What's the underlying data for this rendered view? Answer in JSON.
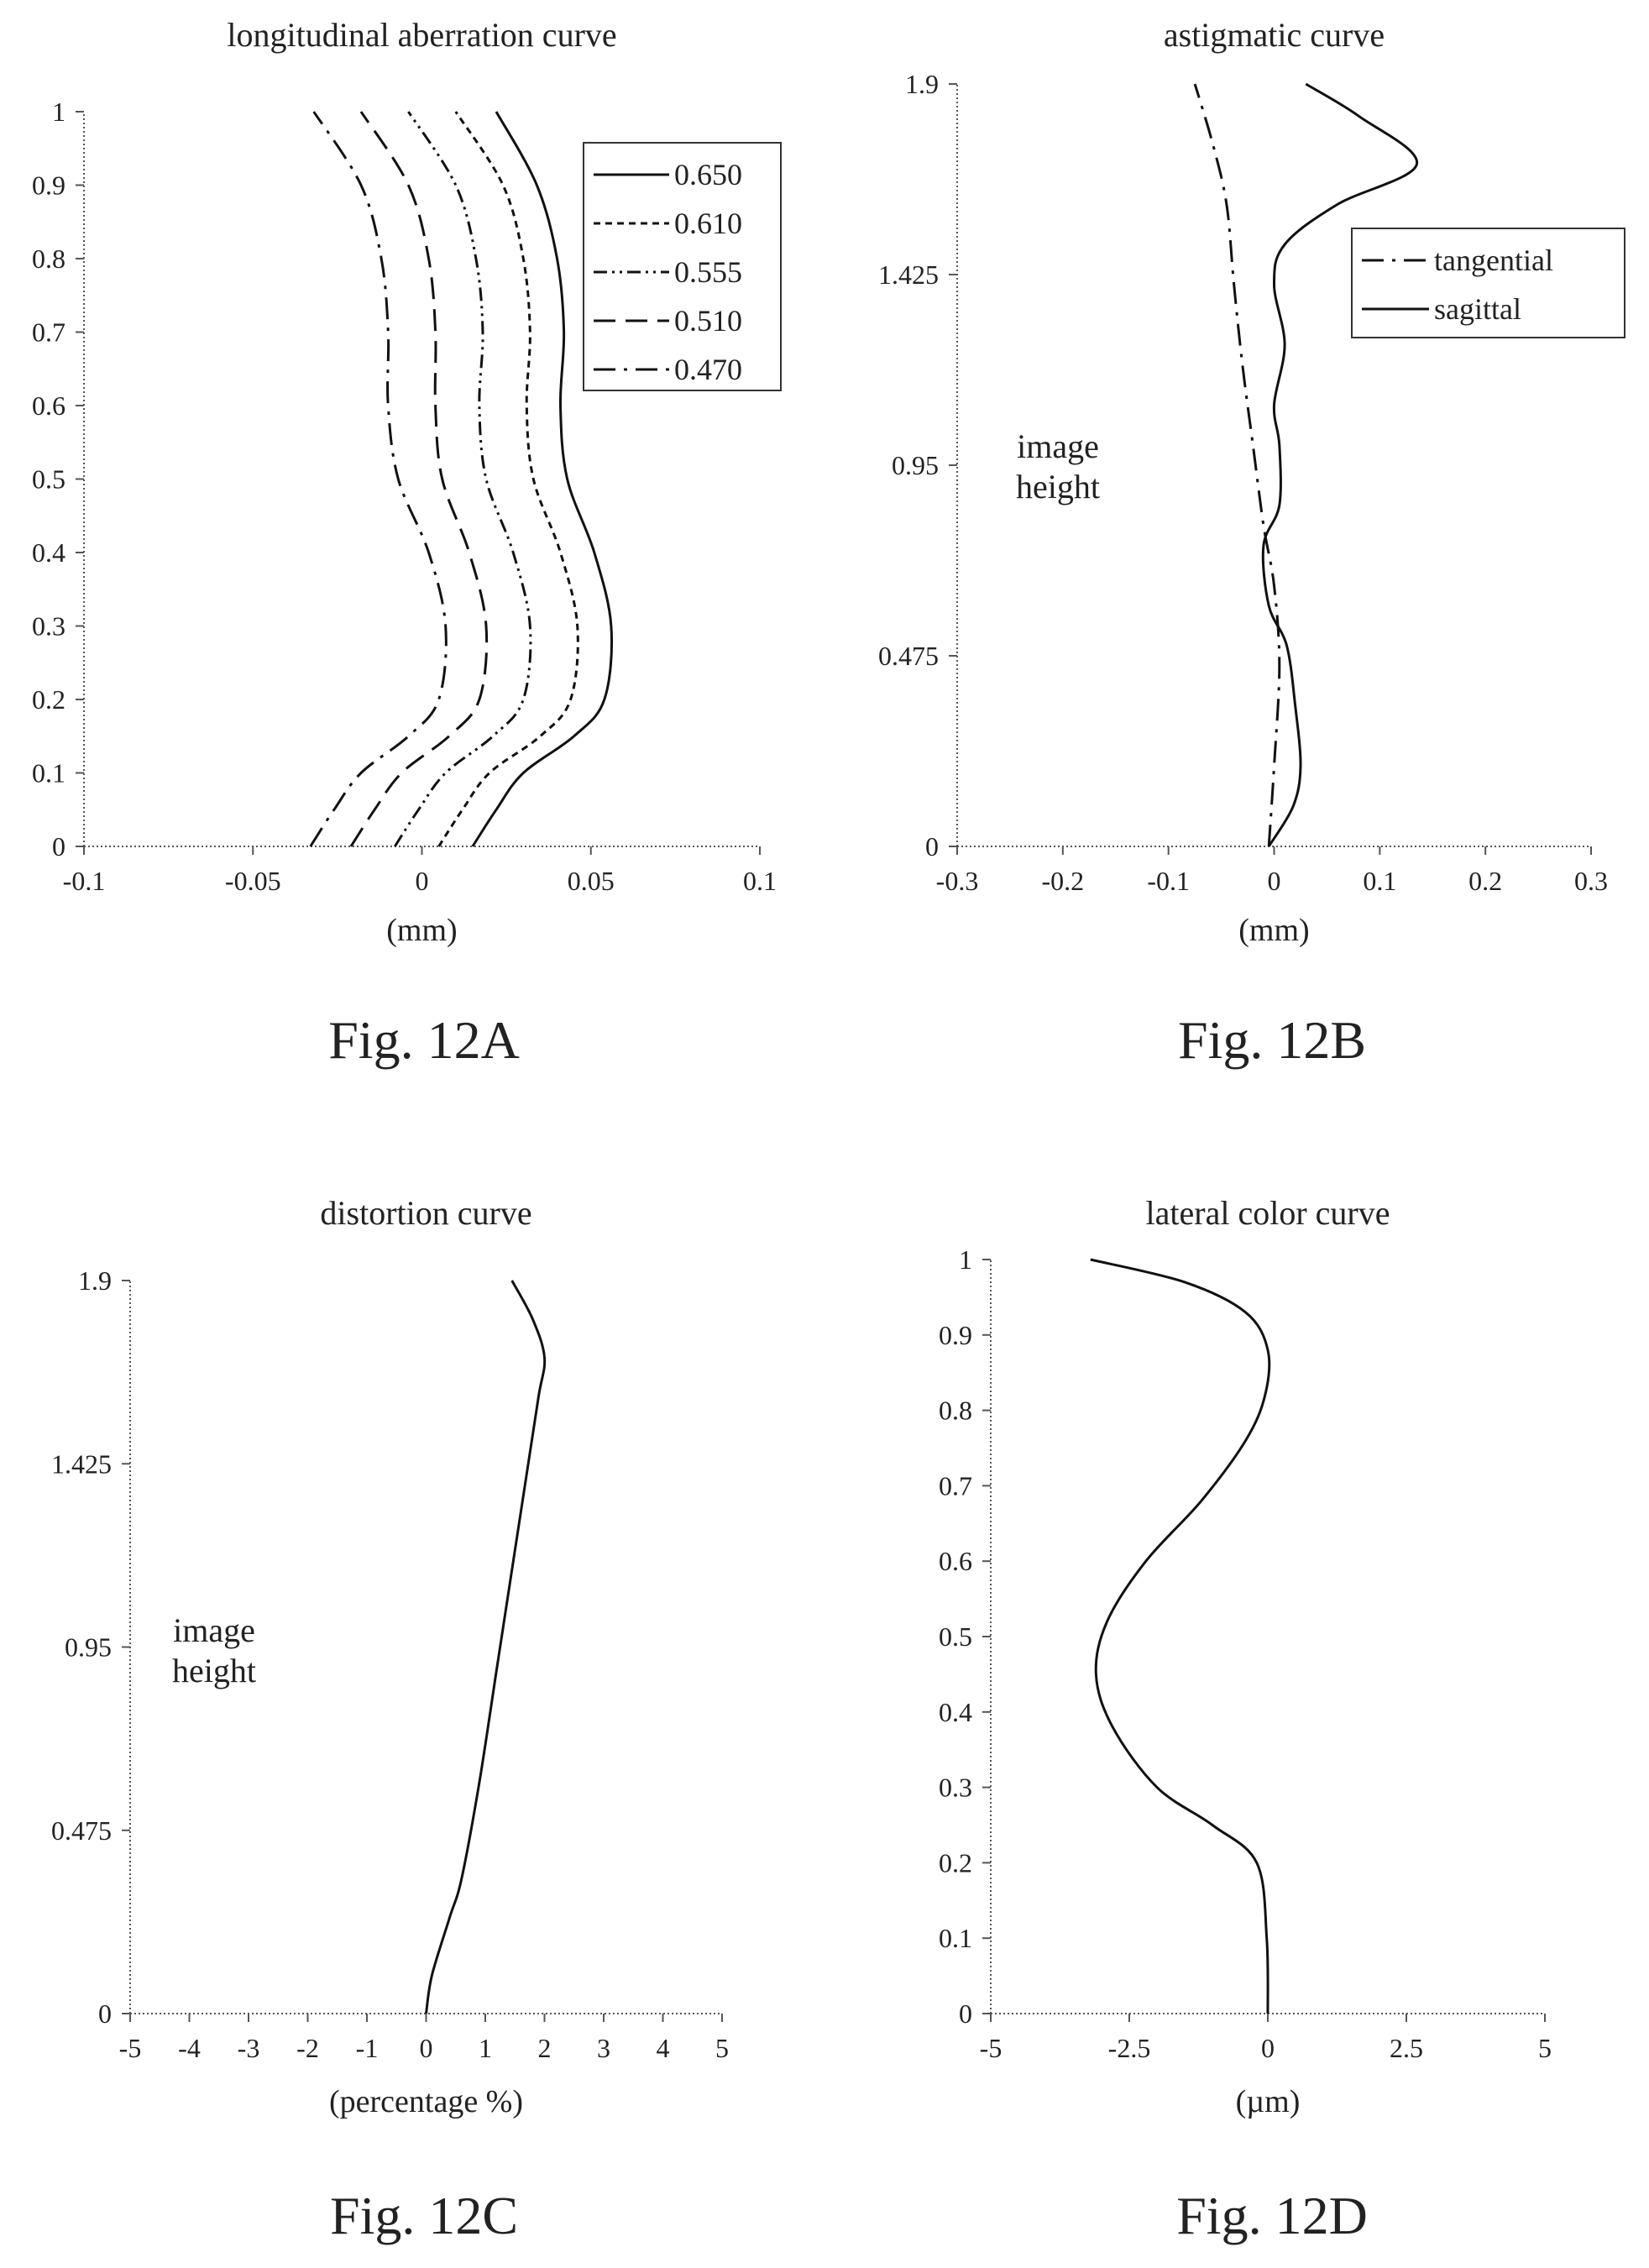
{
  "figures": [
    {
      "caption": "Fig. 12A"
    },
    {
      "caption": "Fig. 12B"
    },
    {
      "caption": "Fig. 12C"
    },
    {
      "caption": "Fig. 12D"
    }
  ],
  "chart_data": [
    {
      "type": "line",
      "title": "longitudinal aberration curve",
      "xlabel": "(mm)",
      "ylabel": "",
      "xlim": [
        -0.1,
        0.1
      ],
      "ylim": [
        0,
        1
      ],
      "x_ticks": [
        "-0.1",
        "-0.05",
        "0",
        "0.05",
        "0.1"
      ],
      "x_tick_values": [
        -0.1,
        -0.05,
        0,
        0.05,
        0.1
      ],
      "y_ticks": [
        "0",
        "0.1",
        "0.2",
        "0.3",
        "0.4",
        "0.5",
        "0.6",
        "0.7",
        "0.8",
        "0.9",
        "1"
      ],
      "y_tick_values": [
        0,
        0.1,
        0.2,
        0.3,
        0.4,
        0.5,
        0.6,
        0.7,
        0.8,
        0.9,
        1
      ],
      "legend": "top-right",
      "series": [
        {
          "name": "0.650",
          "dash": "solid",
          "points": [
            [
              0.015,
              0
            ],
            [
              0.022,
              0.05
            ],
            [
              0.03,
              0.1
            ],
            [
              0.045,
              0.15
            ],
            [
              0.054,
              0.2
            ],
            [
              0.056,
              0.3
            ],
            [
              0.051,
              0.4
            ],
            [
              0.043,
              0.5
            ],
            [
              0.041,
              0.6
            ],
            [
              0.042,
              0.7
            ],
            [
              0.04,
              0.8
            ],
            [
              0.034,
              0.9
            ],
            [
              0.022,
              1.0
            ]
          ]
        },
        {
          "name": "0.610",
          "dash": "short-dash",
          "points": [
            [
              0.005,
              0
            ],
            [
              0.012,
              0.05
            ],
            [
              0.02,
              0.1
            ],
            [
              0.035,
              0.15
            ],
            [
              0.044,
              0.2
            ],
            [
              0.046,
              0.3
            ],
            [
              0.041,
              0.4
            ],
            [
              0.033,
              0.5
            ],
            [
              0.031,
              0.6
            ],
            [
              0.032,
              0.7
            ],
            [
              0.03,
              0.8
            ],
            [
              0.024,
              0.9
            ],
            [
              0.01,
              1.0
            ]
          ]
        },
        {
          "name": "0.555",
          "dash": "dash-dot-dot",
          "points": [
            [
              -0.008,
              0
            ],
            [
              -0.001,
              0.05
            ],
            [
              0.007,
              0.1
            ],
            [
              0.021,
              0.15
            ],
            [
              0.03,
              0.2
            ],
            [
              0.032,
              0.3
            ],
            [
              0.027,
              0.4
            ],
            [
              0.019,
              0.5
            ],
            [
              0.017,
              0.6
            ],
            [
              0.018,
              0.7
            ],
            [
              0.016,
              0.8
            ],
            [
              0.01,
              0.9
            ],
            [
              -0.004,
              1.0
            ]
          ]
        },
        {
          "name": "0.510",
          "dash": "long-dash",
          "points": [
            [
              -0.021,
              0
            ],
            [
              -0.014,
              0.05
            ],
            [
              -0.006,
              0.1
            ],
            [
              0.008,
              0.15
            ],
            [
              0.017,
              0.2
            ],
            [
              0.019,
              0.3
            ],
            [
              0.014,
              0.4
            ],
            [
              0.006,
              0.5
            ],
            [
              0.004,
              0.6
            ],
            [
              0.004,
              0.7
            ],
            [
              0.002,
              0.8
            ],
            [
              -0.004,
              0.9
            ],
            [
              -0.018,
              1.0
            ]
          ]
        },
        {
          "name": "0.470",
          "dash": "dash-dot",
          "points": [
            [
              -0.033,
              0
            ],
            [
              -0.026,
              0.05
            ],
            [
              -0.018,
              0.1
            ],
            [
              -0.004,
              0.15
            ],
            [
              0.005,
              0.2
            ],
            [
              0.007,
              0.3
            ],
            [
              0.002,
              0.4
            ],
            [
              -0.007,
              0.5
            ],
            [
              -0.01,
              0.6
            ],
            [
              -0.01,
              0.7
            ],
            [
              -0.012,
              0.8
            ],
            [
              -0.018,
              0.9
            ],
            [
              -0.032,
              1.0
            ]
          ]
        }
      ]
    },
    {
      "type": "line",
      "title": "astigmatic curve",
      "xlabel": "(mm)",
      "ylabel": "image height",
      "xlim": [
        -0.3,
        0.3
      ],
      "ylim": [
        0,
        1.9
      ],
      "x_ticks": [
        "-0.3",
        "-0.2",
        "-0.1",
        "0",
        "0.1",
        "0.2",
        "0.3"
      ],
      "x_tick_values": [
        -0.3,
        -0.2,
        -0.1,
        0,
        0.1,
        0.2,
        0.3
      ],
      "y_ticks": [
        "0",
        "0.475",
        "0.95",
        "1.425",
        "1.9"
      ],
      "y_tick_values": [
        0,
        0.475,
        0.95,
        1.425,
        1.9
      ],
      "legend": "top-right",
      "series": [
        {
          "name": "tangential",
          "dash": "dash-dot",
          "points": [
            [
              -0.005,
              0
            ],
            [
              0.0,
              0.2
            ],
            [
              0.005,
              0.45
            ],
            [
              0.0,
              0.65
            ],
            [
              -0.01,
              0.8
            ],
            [
              -0.02,
              1.0
            ],
            [
              -0.03,
              1.2
            ],
            [
              -0.038,
              1.4
            ],
            [
              -0.045,
              1.6
            ],
            [
              -0.058,
              1.75
            ],
            [
              -0.075,
              1.9
            ]
          ]
        },
        {
          "name": "sagittal",
          "dash": "solid",
          "points": [
            [
              -0.005,
              0
            ],
            [
              0.018,
              0.1
            ],
            [
              0.025,
              0.2
            ],
            [
              0.02,
              0.35
            ],
            [
              0.012,
              0.5
            ],
            [
              -0.005,
              0.6
            ],
            [
              -0.01,
              0.75
            ],
            [
              0.005,
              0.85
            ],
            [
              0.005,
              1.0
            ],
            [
              0.0,
              1.1
            ],
            [
              0.01,
              1.25
            ],
            [
              0.0,
              1.4
            ],
            [
              0.01,
              1.5
            ],
            [
              0.06,
              1.6
            ],
            [
              0.135,
              1.7
            ],
            [
              0.08,
              1.82
            ],
            [
              0.03,
              1.9
            ]
          ]
        }
      ]
    },
    {
      "type": "line",
      "title": "distortion curve",
      "xlabel": "(percentage %)",
      "ylabel": "image height",
      "xlim": [
        -5,
        5
      ],
      "ylim": [
        0,
        1.9
      ],
      "x_ticks": [
        "-5",
        "-4",
        "-3",
        "-2",
        "-1",
        "0",
        "1",
        "2",
        "3",
        "4",
        "5"
      ],
      "x_tick_values": [
        -5,
        -4,
        -3,
        -2,
        -1,
        0,
        1,
        2,
        3,
        4,
        5
      ],
      "y_ticks": [
        "0",
        "0.475",
        "0.95",
        "1.425",
        "1.9"
      ],
      "y_tick_values": [
        0,
        0.475,
        0.95,
        1.425,
        1.9
      ],
      "legend": "none",
      "series": [
        {
          "name": "",
          "dash": "solid",
          "points": [
            [
              0.0,
              0
            ],
            [
              0.1,
              0.1
            ],
            [
              0.4,
              0.25
            ],
            [
              0.6,
              0.35
            ],
            [
              0.9,
              0.6
            ],
            [
              1.2,
              0.9
            ],
            [
              1.4,
              1.1
            ],
            [
              1.7,
              1.4
            ],
            [
              1.9,
              1.6
            ],
            [
              2.0,
              1.7
            ],
            [
              1.8,
              1.8
            ],
            [
              1.45,
              1.9
            ]
          ]
        }
      ]
    },
    {
      "type": "line",
      "title": "lateral color curve",
      "xlabel": "(µm)",
      "ylabel": "",
      "xlim": [
        -5,
        5
      ],
      "ylim": [
        0,
        1
      ],
      "x_ticks": [
        "-5",
        "-2.5",
        "0",
        "2.5",
        "5"
      ],
      "x_tick_values": [
        -5,
        -2.5,
        0,
        2.5,
        5
      ],
      "y_ticks": [
        "0",
        "0.1",
        "0.2",
        "0.3",
        "0.4",
        "0.5",
        "0.6",
        "0.7",
        "0.8",
        "0.9",
        "1"
      ],
      "y_tick_values": [
        0,
        0.1,
        0.2,
        0.3,
        0.4,
        0.5,
        0.6,
        0.7,
        0.8,
        0.9,
        1
      ],
      "legend": "none",
      "series": [
        {
          "name": "",
          "dash": "solid",
          "points": [
            [
              0.0,
              0
            ],
            [
              -0.02,
              0.1
            ],
            [
              -0.2,
              0.2
            ],
            [
              -1.0,
              0.25
            ],
            [
              -2.0,
              0.3
            ],
            [
              -2.8,
              0.38
            ],
            [
              -3.1,
              0.45
            ],
            [
              -2.9,
              0.52
            ],
            [
              -2.2,
              0.6
            ],
            [
              -1.2,
              0.68
            ],
            [
              -0.4,
              0.76
            ],
            [
              -0.05,
              0.82
            ],
            [
              0.0,
              0.88
            ],
            [
              -0.4,
              0.93
            ],
            [
              -1.5,
              0.97
            ],
            [
              -3.2,
              1.0
            ]
          ]
        }
      ]
    }
  ]
}
